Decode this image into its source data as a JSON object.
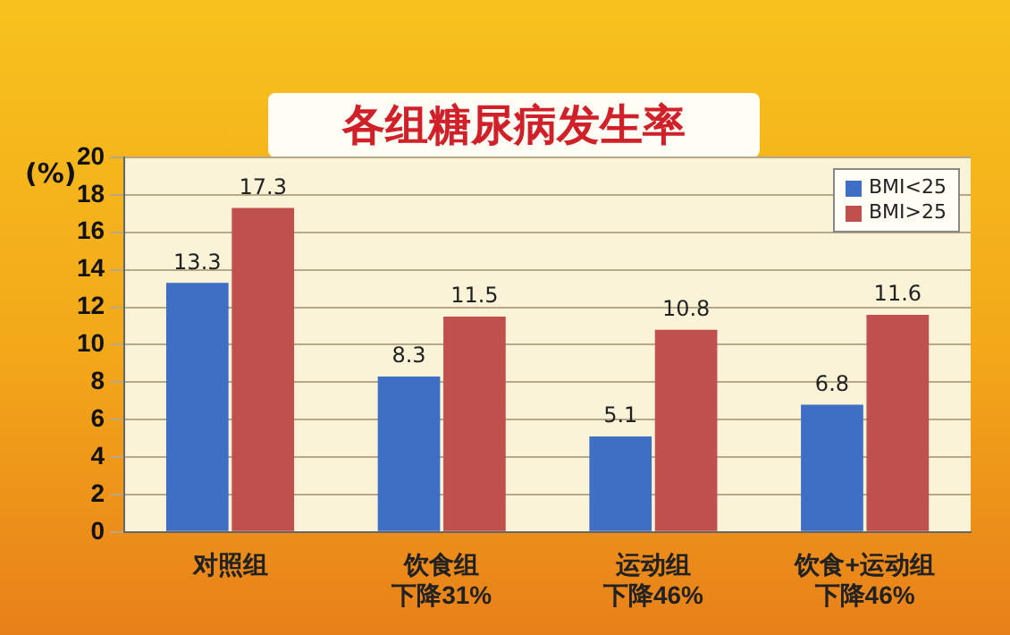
{
  "chart_data": {
    "type": "bar",
    "title": "各组糖尿病发生率",
    "ylabel": "(%)",
    "categories": [
      "对照组",
      "饮食组下降31%",
      "运动组下降46%",
      "饮食+运动组下降46%"
    ],
    "series": [
      {
        "name": "BMI<25",
        "color": "#3f6fc4",
        "values": [
          13.3,
          8.3,
          5.1,
          6.8
        ]
      },
      {
        "name": "BMI>25",
        "color": "#c0504d",
        "values": [
          17.3,
          11.5,
          10.8,
          11.6
        ]
      }
    ],
    "ylim": [
      0,
      20
    ],
    "yticks": [
      0,
      2,
      4,
      6,
      8,
      10,
      12,
      14,
      16,
      18,
      20
    ],
    "grid": "y",
    "legend": "top right",
    "data_labels": true
  }
}
